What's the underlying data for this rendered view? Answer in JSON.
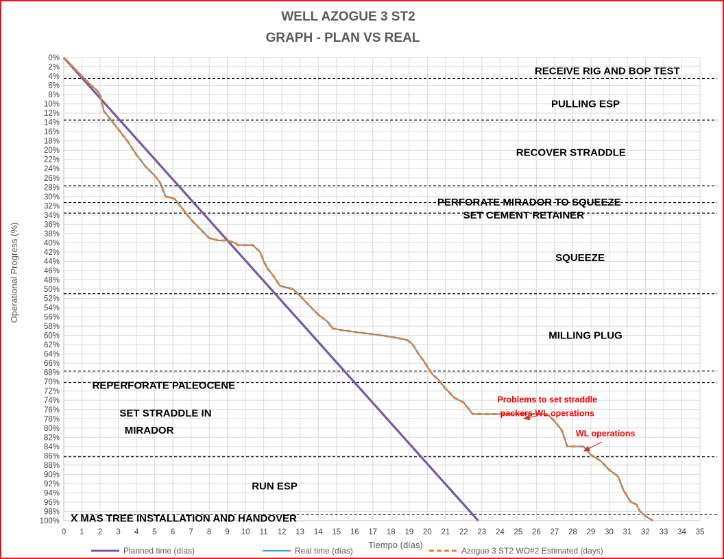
{
  "chart_data": {
    "type": "line",
    "title": "WELL AZOGUE 3 ST2",
    "subtitle": "GRAPH  - PLAN VS REAL",
    "xlabel": "Tiempo (días)",
    "ylabel": "Operational Progress (%)",
    "xlim": [
      0,
      35
    ],
    "ylim": [
      0,
      100
    ],
    "y_inverted": true,
    "x_ticks": [
      0,
      1,
      2,
      3,
      4,
      5,
      6,
      7,
      8,
      9,
      10,
      11,
      12,
      13,
      14,
      15,
      16,
      17,
      18,
      19,
      20,
      21,
      22,
      23,
      24,
      25,
      26,
      27,
      28,
      29,
      30,
      31,
      32,
      33,
      34,
      35
    ],
    "y_ticks": [
      0,
      2,
      4,
      6,
      8,
      10,
      12,
      14,
      16,
      18,
      20,
      22,
      24,
      26,
      28,
      30,
      32,
      34,
      36,
      38,
      40,
      42,
      44,
      46,
      48,
      50,
      52,
      54,
      56,
      58,
      60,
      62,
      64,
      66,
      68,
      70,
      72,
      74,
      76,
      78,
      80,
      82,
      84,
      86,
      88,
      90,
      92,
      94,
      96,
      98,
      100
    ],
    "grid": true,
    "legend_position": "bottom",
    "series": [
      {
        "name": "Planned time (días)",
        "color": "#7b57a0",
        "style": "solid",
        "x": [
          0,
          22.8
        ],
        "y": [
          0,
          100
        ]
      },
      {
        "name": "Real time (días)",
        "color": "#2e9fd0",
        "style": "solid",
        "x": [
          0,
          0.5,
          1,
          1.5,
          1.8,
          2,
          2.2,
          2.5,
          3,
          3.5,
          4,
          4.5,
          5,
          5.3,
          5.6,
          6.1,
          6.5,
          7,
          7.5,
          8,
          8.5,
          9,
          9.4,
          9.6,
          9.9,
          10.4,
          10.8,
          11,
          11.2,
          11.5,
          11.9,
          12.1,
          12.6,
          13,
          13.5,
          14,
          14.5,
          14.8,
          15.5,
          16.5,
          17.5,
          18.3,
          18.9,
          19.2,
          19.6,
          19.8,
          20.3,
          20.6,
          21,
          21.5,
          22,
          22.5,
          24,
          25.5,
          26.6,
          27,
          27.4,
          27.7,
          28,
          28.6,
          29,
          29.5,
          30,
          30.5,
          30.8,
          31.2,
          31.5,
          31.7,
          32,
          32.4
        ],
        "y": [
          0,
          2,
          4,
          6,
          7,
          8,
          11.5,
          13,
          15.5,
          18,
          21,
          23.5,
          25.5,
          27,
          30,
          30.5,
          32.5,
          35,
          37,
          39,
          39.5,
          39.5,
          40,
          40.5,
          40.5,
          40.5,
          42,
          44,
          45.5,
          47,
          49.3,
          49.5,
          50,
          51.5,
          53.5,
          55.5,
          57,
          58.5,
          59,
          59.5,
          60,
          60.5,
          61,
          62,
          64.5,
          65.5,
          68.5,
          69.5,
          71.5,
          73.5,
          74.5,
          77,
          77,
          77,
          77,
          78.5,
          80.5,
          84,
          84,
          84,
          85.8,
          87,
          89,
          90.5,
          93.5,
          96,
          96.5,
          98,
          99,
          100
        ]
      },
      {
        "name": "Azogue 3 ST2 WO#2 Estimated (days)",
        "color": "#ed7d31",
        "style": "dashed",
        "x": [
          0,
          0.5,
          1,
          1.5,
          1.8,
          2,
          2.2,
          2.5,
          3,
          3.5,
          4,
          4.5,
          5,
          5.3,
          5.6,
          6.1,
          6.5,
          7,
          7.5,
          8,
          8.5,
          9,
          9.4,
          9.6,
          9.9,
          10.4,
          10.8,
          11,
          11.2,
          11.5,
          11.9,
          12.1,
          12.6,
          13,
          13.5,
          14,
          14.5,
          14.8,
          15.5,
          16.5,
          17.5,
          18.3,
          18.9,
          19.2,
          19.6,
          19.8,
          20.3,
          20.6,
          21,
          21.5,
          22,
          22.5,
          24,
          25.5,
          26.6,
          27,
          27.4,
          27.7,
          28,
          28.6,
          29,
          29.5,
          30,
          30.5,
          30.8,
          31.2,
          31.5,
          31.7,
          32,
          32.4
        ],
        "y": [
          0,
          2,
          4,
          6,
          7,
          8,
          11.5,
          13,
          15.5,
          18,
          21,
          23.5,
          25.5,
          27,
          30,
          30.5,
          32.5,
          35,
          37,
          39,
          39.5,
          39.5,
          40,
          40.5,
          40.5,
          40.5,
          42,
          44,
          45.5,
          47,
          49.3,
          49.5,
          50,
          51.5,
          53.5,
          55.5,
          57,
          58.5,
          59,
          59.5,
          60,
          60.5,
          61,
          62,
          64.5,
          65.5,
          68.5,
          69.5,
          71.5,
          73.5,
          74.5,
          77,
          77,
          77,
          77,
          78.5,
          80.5,
          84,
          84,
          84,
          85.8,
          87,
          89,
          90.5,
          93.5,
          96,
          96.5,
          98,
          99,
          100
        ]
      }
    ],
    "phase_boundaries": [
      {
        "y": 4.5,
        "x_start": 0
      },
      {
        "y": 13.5,
        "x_start": 0
      },
      {
        "y": 27.7,
        "x_start": 0
      },
      {
        "y": 31.3,
        "x_start": 0
      },
      {
        "y": 33.6,
        "x_start": 0
      },
      {
        "y": 51,
        "x_start": 0
      },
      {
        "y": 67.7,
        "x_start": 0
      },
      {
        "y": 70.2,
        "x_start": 0
      },
      {
        "y": 86.2,
        "x_start": 0
      },
      {
        "y": 98.7,
        "x_start": 0.4
      }
    ],
    "phase_labels": [
      {
        "text": "RECEIVE RIG AND BOP TEST",
        "x": 29.9,
        "y": 2.9
      },
      {
        "text": "PULLING ESP",
        "x": 28.7,
        "y": 10
      },
      {
        "text": "RECOVER STRADDLE",
        "x": 27.9,
        "y": 20.5
      },
      {
        "text": "PERFORATE MIRADOR TO SQUEEZE",
        "x": 25.6,
        "y": 31.2
      },
      {
        "text": "SET CEMENT RETAINER",
        "x": 25.3,
        "y": 34
      },
      {
        "text": "SQUEEZE",
        "x": 28.4,
        "y": 43.2
      },
      {
        "text": "MILLING PLUG",
        "x": 28.7,
        "y": 60
      },
      {
        "text": "REPERFORATE PALEOCENE",
        "x": 5.5,
        "y": 70.8
      },
      {
        "text": "SET STRADDLE IN",
        "x": 5.6,
        "y": 76.8
      },
      {
        "text": "MIRADOR",
        "x": 4.7,
        "y": 80.5
      },
      {
        "text": "RUN ESP",
        "x": 11.6,
        "y": 92.5
      },
      {
        "text": "X MAS TREE INSTALLATION AND HANDOVER",
        "x": 6.6,
        "y": 99.5
      }
    ],
    "annotations": [
      {
        "text": [
          "Problems to set straddle",
          "packers WL operations"
        ],
        "text_x": 26.6,
        "text_y": 74.5,
        "arrow_from": [
          26.1,
          77.3
        ],
        "arrow_to": [
          25.3,
          78
        ]
      },
      {
        "text": [
          "WL operations"
        ],
        "text_x": 29.8,
        "text_y": 81.8,
        "arrow_from": [
          29.6,
          83
        ],
        "arrow_to": [
          28.6,
          85
        ]
      }
    ]
  }
}
